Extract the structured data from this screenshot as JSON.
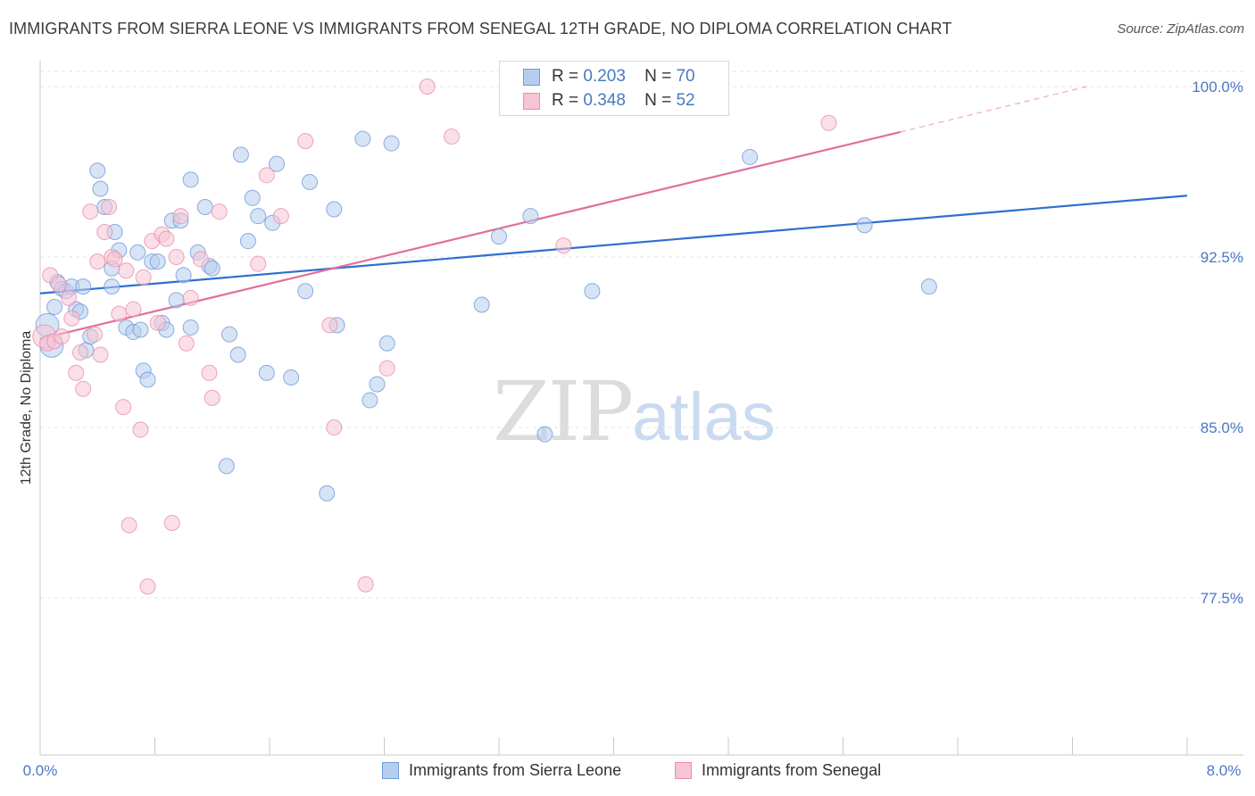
{
  "title": "IMMIGRANTS FROM SIERRA LEONE VS IMMIGRANTS FROM SENEGAL 12TH GRADE, NO DIPLOMA CORRELATION CHART",
  "source": "Source: ZipAtlas.com",
  "watermark": {
    "zip": "ZIP",
    "atlas": "atlas"
  },
  "legend": {
    "r_label": "R =",
    "n_label": "N =",
    "rows": [
      {
        "r": "0.203",
        "n": "70"
      },
      {
        "r": "0.348",
        "n": "52"
      }
    ]
  },
  "colors": {
    "blue_fill": "#b6cdef",
    "blue_stroke": "#6f9ad8",
    "blue_line": "#2f6fd0",
    "pink_fill": "#f7c4d3",
    "pink_stroke": "#e98fab",
    "pink_line": "#e0709a",
    "grid": "#e3e3e3",
    "tick_text": "#4a78c4"
  },
  "chart_data": {
    "type": "scatter",
    "title": "IMMIGRANTS FROM SIERRA LEONE VS IMMIGRANTS FROM SENEGAL 12TH GRADE, NO DIPLOMA CORRELATION CHART",
    "xlabel": "",
    "ylabel": "12th Grade, No Diploma",
    "xlim": [
      0.0,
      8.0
    ],
    "ylim": [
      70.0,
      101.0
    ],
    "x_tick_labels": [
      "0.0%",
      "8.0%"
    ],
    "y_ticks": [
      77.5,
      85.0,
      92.5,
      100.0
    ],
    "y_tick_labels": [
      "77.5%",
      "85.0%",
      "92.5%",
      "100.0%"
    ],
    "grid": true,
    "legend_position": "top-center",
    "series": [
      {
        "name": "Immigrants from Sierra Leone",
        "r": 0.203,
        "n": 70,
        "trend": {
          "x0": 0.0,
          "y0": 90.9,
          "x1": 8.0,
          "y1": 95.2
        },
        "points": [
          [
            0.05,
            89.5
          ],
          [
            0.08,
            88.6
          ],
          [
            0.1,
            90.3
          ],
          [
            0.12,
            91.4
          ],
          [
            0.15,
            91.1
          ],
          [
            0.18,
            91.0
          ],
          [
            0.22,
            91.2
          ],
          [
            0.25,
            90.2
          ],
          [
            0.28,
            90.1
          ],
          [
            0.32,
            88.4
          ],
          [
            0.35,
            89.0
          ],
          [
            0.4,
            96.3
          ],
          [
            0.42,
            95.5
          ],
          [
            0.45,
            94.7
          ],
          [
            0.5,
            92.0
          ],
          [
            0.5,
            91.2
          ],
          [
            0.52,
            93.6
          ],
          [
            0.55,
            92.8
          ],
          [
            0.6,
            89.4
          ],
          [
            0.65,
            89.2
          ],
          [
            0.68,
            92.7
          ],
          [
            0.7,
            89.3
          ],
          [
            0.72,
            87.5
          ],
          [
            0.75,
            87.1
          ],
          [
            0.78,
            92.3
          ],
          [
            0.82,
            92.3
          ],
          [
            0.85,
            89.6
          ],
          [
            0.88,
            89.3
          ],
          [
            0.92,
            94.1
          ],
          [
            0.95,
            90.6
          ],
          [
            0.98,
            94.1
          ],
          [
            1.0,
            91.7
          ],
          [
            1.05,
            89.4
          ],
          [
            1.05,
            95.9
          ],
          [
            1.1,
            92.7
          ],
          [
            1.15,
            94.7
          ],
          [
            1.18,
            92.1
          ],
          [
            1.2,
            92.0
          ],
          [
            1.3,
            83.3
          ],
          [
            1.32,
            89.1
          ],
          [
            1.38,
            88.2
          ],
          [
            1.4,
            97.0
          ],
          [
            1.45,
            93.2
          ],
          [
            1.48,
            95.1
          ],
          [
            1.52,
            94.3
          ],
          [
            1.58,
            87.4
          ],
          [
            1.62,
            94.0
          ],
          [
            1.65,
            96.6
          ],
          [
            1.75,
            87.2
          ],
          [
            1.85,
            91.0
          ],
          [
            1.88,
            95.8
          ],
          [
            2.0,
            82.1
          ],
          [
            2.05,
            94.6
          ],
          [
            2.07,
            89.5
          ],
          [
            2.25,
            97.7
          ],
          [
            2.3,
            86.2
          ],
          [
            2.35,
            86.9
          ],
          [
            2.42,
            88.7
          ],
          [
            2.45,
            97.5
          ],
          [
            3.08,
            90.4
          ],
          [
            3.2,
            93.4
          ],
          [
            3.42,
            94.3
          ],
          [
            3.52,
            84.7
          ],
          [
            3.6,
            100.0
          ],
          [
            3.85,
            91.0
          ],
          [
            4.2,
            100.0
          ],
          [
            4.95,
            96.9
          ],
          [
            5.75,
            93.9
          ],
          [
            6.2,
            91.2
          ],
          [
            0.3,
            91.2
          ]
        ]
      },
      {
        "name": "Immigrants from Senegal",
        "r": 0.348,
        "n": 52,
        "trend": {
          "x0": 0.0,
          "y0": 88.9,
          "x1": 6.0,
          "y1": 98.0
        },
        "trend_dashed": {
          "x0": 6.0,
          "y0": 98.0,
          "x1": 7.3,
          "y1": 100.0
        },
        "points": [
          [
            0.03,
            89.0
          ],
          [
            0.05,
            88.7
          ],
          [
            0.07,
            91.7
          ],
          [
            0.1,
            88.8
          ],
          [
            0.13,
            91.3
          ],
          [
            0.15,
            89.0
          ],
          [
            0.2,
            90.7
          ],
          [
            0.22,
            89.8
          ],
          [
            0.25,
            87.4
          ],
          [
            0.28,
            88.3
          ],
          [
            0.3,
            86.7
          ],
          [
            0.35,
            94.5
          ],
          [
            0.38,
            89.1
          ],
          [
            0.4,
            92.3
          ],
          [
            0.42,
            88.2
          ],
          [
            0.45,
            93.6
          ],
          [
            0.48,
            94.7
          ],
          [
            0.5,
            92.5
          ],
          [
            0.52,
            92.4
          ],
          [
            0.55,
            90.0
          ],
          [
            0.58,
            85.9
          ],
          [
            0.6,
            91.9
          ],
          [
            0.62,
            80.7
          ],
          [
            0.65,
            90.2
          ],
          [
            0.7,
            84.9
          ],
          [
            0.72,
            91.6
          ],
          [
            0.75,
            78.0
          ],
          [
            0.78,
            93.2
          ],
          [
            0.82,
            89.6
          ],
          [
            0.85,
            93.5
          ],
          [
            0.88,
            93.3
          ],
          [
            0.92,
            80.8
          ],
          [
            0.95,
            92.5
          ],
          [
            0.98,
            94.3
          ],
          [
            1.02,
            88.7
          ],
          [
            1.05,
            90.7
          ],
          [
            1.12,
            92.4
          ],
          [
            1.18,
            87.4
          ],
          [
            1.2,
            86.3
          ],
          [
            1.25,
            94.5
          ],
          [
            1.52,
            92.2
          ],
          [
            1.58,
            96.1
          ],
          [
            1.68,
            94.3
          ],
          [
            1.85,
            97.6
          ],
          [
            2.02,
            89.5
          ],
          [
            2.05,
            85.0
          ],
          [
            2.27,
            78.1
          ],
          [
            2.42,
            87.6
          ],
          [
            2.7,
            100.0
          ],
          [
            2.87,
            97.8
          ],
          [
            3.65,
            93.0
          ],
          [
            5.5,
            98.4
          ]
        ]
      }
    ]
  },
  "bottom_legend": [
    {
      "label": "Immigrants from Sierra Leone"
    },
    {
      "label": "Immigrants from Senegal"
    }
  ]
}
